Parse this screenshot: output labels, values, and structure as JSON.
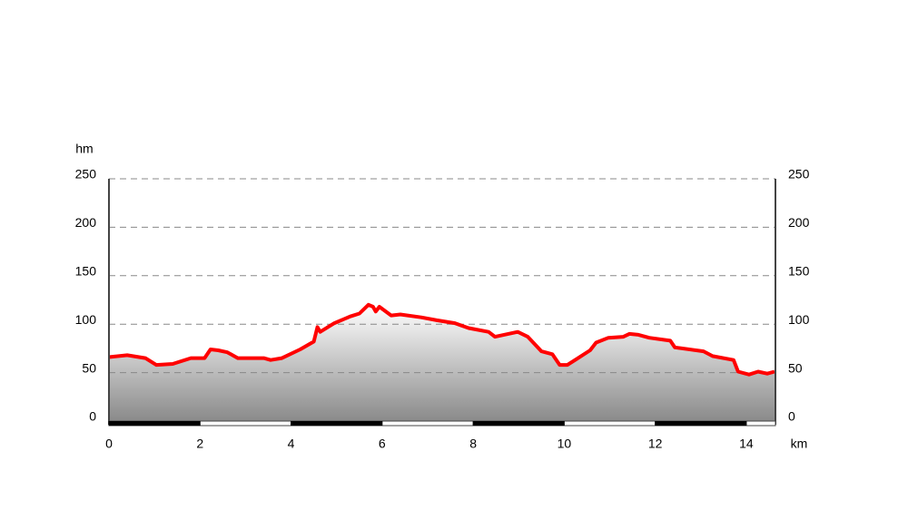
{
  "chart_data": {
    "type": "area",
    "y_label": "hm",
    "x_label": "km",
    "xlim": [
      0,
      14.64
    ],
    "ylim": [
      0,
      250
    ],
    "xticks": [
      0,
      2,
      4,
      6,
      8,
      10,
      12,
      14
    ],
    "yticks": [
      0,
      50,
      100,
      150,
      200,
      250
    ],
    "grid": true,
    "color": "#ff0000",
    "x": [
      0,
      0.4,
      0.8,
      1.04,
      1.4,
      1.8,
      2.1,
      2.23,
      2.4,
      2.6,
      2.83,
      3.4,
      3.55,
      3.8,
      4.2,
      4.5,
      4.58,
      4.64,
      4.95,
      5.3,
      5.5,
      5.7,
      5.8,
      5.86,
      5.94,
      6.2,
      6.4,
      6.86,
      7.2,
      7.6,
      7.9,
      8.34,
      8.48,
      8.98,
      9.2,
      9.5,
      9.74,
      9.9,
      10.07,
      10.57,
      10.7,
      10.97,
      11.3,
      11.43,
      11.63,
      11.87,
      12.33,
      12.43,
      13.06,
      13.26,
      13.72,
      13.82,
      14.06,
      14.26,
      14.46,
      14.62
    ],
    "values": [
      66,
      68,
      65,
      58,
      59,
      65,
      65,
      74,
      73,
      71,
      65,
      65,
      63,
      65,
      74,
      82,
      97,
      92,
      101,
      108,
      111,
      120,
      118,
      113,
      118,
      109,
      110,
      107,
      104,
      101,
      96,
      92,
      87,
      92,
      87,
      72,
      69,
      58,
      58,
      73,
      81,
      86,
      87,
      90,
      89,
      86,
      83,
      76,
      72,
      67,
      63,
      51,
      48,
      51,
      49,
      51
    ]
  }
}
